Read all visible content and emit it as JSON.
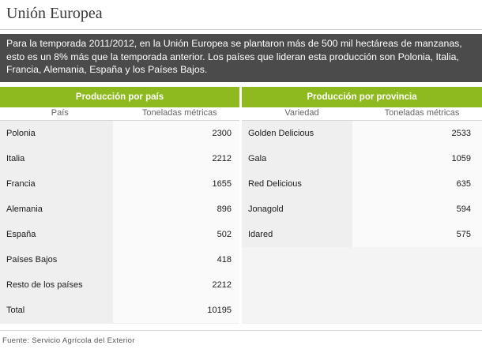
{
  "title": "Unión Europea",
  "intro": "Para la temporada 2011/2012, en la Unión Europea se plantaron más de 500 mil hectáreas de manzanas, esto es un 8% más que la temporada anterior. Los países que lideran esta producción son Polonia, Italia, Francia, Alemania, España y los Países Bajos.",
  "left_table": {
    "heading": "Producción por país",
    "columns": [
      "País",
      "Toneladas métricas"
    ],
    "rows": [
      {
        "name": "Polonia",
        "value": "2300"
      },
      {
        "name": "Italia",
        "value": "2212"
      },
      {
        "name": "Francia",
        "value": "1655"
      },
      {
        "name": "Alemania",
        "value": "896"
      },
      {
        "name": "España",
        "value": "502"
      },
      {
        "name": "Países Bajos",
        "value": "418"
      },
      {
        "name": "Resto de los países",
        "value": "2212"
      },
      {
        "name": "Total",
        "value": "10195"
      }
    ]
  },
  "right_table": {
    "heading": "Producción por provincia",
    "columns": [
      "Variedad",
      "Toneladas métricas"
    ],
    "rows": [
      {
        "name": "Golden Delicious",
        "value": "2533"
      },
      {
        "name": "Gala",
        "value": "1059"
      },
      {
        "name": "Red Delicious",
        "value": "635"
      },
      {
        "name": "Jonagold",
        "value": "594"
      },
      {
        "name": "Idared",
        "value": "575"
      }
    ]
  },
  "source": "Fuente: Servicio Agrícola del Exterior"
}
